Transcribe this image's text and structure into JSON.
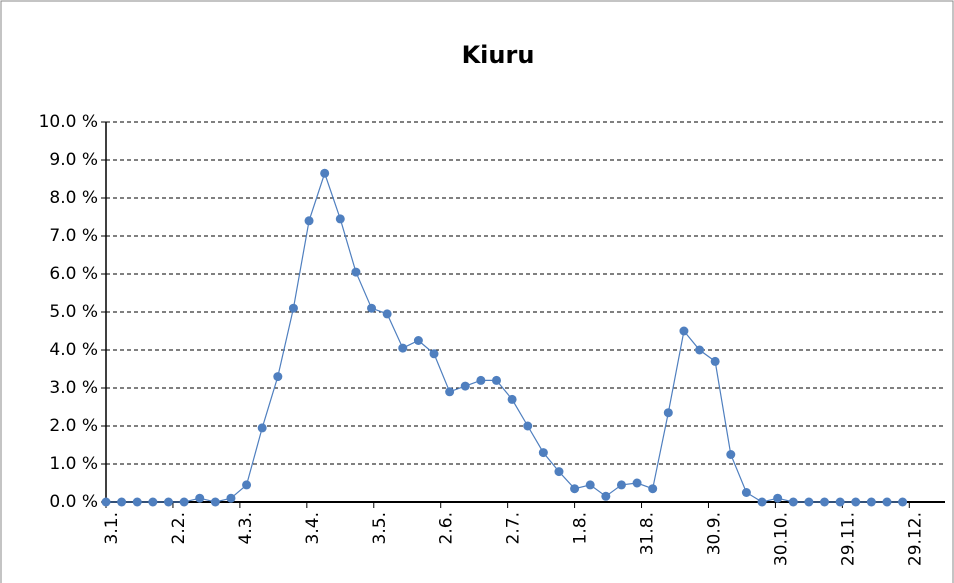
{
  "chart_data": {
    "type": "line",
    "title": "Kiuru",
    "x": [
      0,
      7,
      14,
      21,
      28,
      35,
      42,
      49,
      56,
      63,
      70,
      77,
      84,
      91,
      98,
      105,
      112,
      119,
      126,
      133,
      140,
      147,
      154,
      161,
      168,
      175,
      182,
      189,
      196,
      203,
      210,
      217,
      224,
      231,
      238,
      245,
      252,
      259,
      266,
      273,
      280,
      287,
      294,
      301,
      308,
      315,
      322,
      329,
      336,
      343,
      350,
      357
    ],
    "series": [
      {
        "name": "Kiuru",
        "color": "#4f7fbf",
        "values": [
          0,
          0,
          0,
          0,
          0,
          0,
          0.1,
          0,
          0.1,
          0.45,
          1.95,
          3.3,
          5.1,
          7.4,
          8.65,
          7.45,
          6.05,
          5.1,
          4.95,
          4.05,
          4.25,
          3.9,
          2.9,
          3.05,
          3.2,
          3.2,
          2.7,
          2.0,
          1.3,
          0.8,
          0.35,
          0.45,
          0.15,
          0.45,
          0.5,
          0.35,
          2.35,
          4.5,
          4.0,
          3.7,
          1.25,
          0.25,
          0,
          0.1,
          0,
          0,
          0,
          0,
          0,
          0,
          0,
          0
        ]
      }
    ],
    "xlim": [
      0,
      376
    ],
    "xticks": [
      {
        "value": 0,
        "label": "3.1."
      },
      {
        "value": 30,
        "label": "2.2."
      },
      {
        "value": 60,
        "label": "4.3."
      },
      {
        "value": 90,
        "label": "3.4."
      },
      {
        "value": 120,
        "label": "3.5."
      },
      {
        "value": 150,
        "label": "2.6."
      },
      {
        "value": 180,
        "label": "2.7."
      },
      {
        "value": 210,
        "label": "1.8."
      },
      {
        "value": 240,
        "label": "31.8."
      },
      {
        "value": 270,
        "label": "30.9."
      },
      {
        "value": 300,
        "label": "30.10."
      },
      {
        "value": 330,
        "label": "29.11."
      },
      {
        "value": 360,
        "label": "29.12."
      }
    ],
    "ylim": [
      0,
      10
    ],
    "yticks": [
      {
        "value": 0,
        "label": "0.0 %"
      },
      {
        "value": 1,
        "label": "1.0 %"
      },
      {
        "value": 2,
        "label": "2.0 %"
      },
      {
        "value": 3,
        "label": "3.0 %"
      },
      {
        "value": 4,
        "label": "4.0 %"
      },
      {
        "value": 5,
        "label": "5.0 %"
      },
      {
        "value": 6,
        "label": "6.0 %"
      },
      {
        "value": 7,
        "label": "7.0 %"
      },
      {
        "value": 8,
        "label": "8.0 %"
      },
      {
        "value": 9,
        "label": "9.0 %"
      },
      {
        "value": 10,
        "label": "10.0 %"
      }
    ],
    "grid": true
  }
}
